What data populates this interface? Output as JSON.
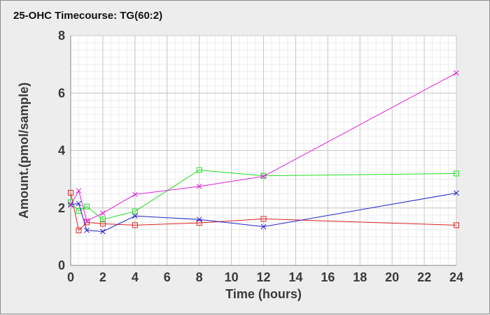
{
  "chart_data": {
    "type": "line",
    "title": "25-OHC Timecourse: TG(60:2)",
    "xlabel": "Time (hours)",
    "ylabel": "Amount.(pmol/sample)",
    "xlim": [
      0,
      24
    ],
    "ylim": [
      0,
      8
    ],
    "x_ticks": [
      "0",
      "2",
      "4",
      "6",
      "8",
      "10",
      "12",
      "14",
      "16",
      "18",
      "20",
      "22",
      "24"
    ],
    "y_ticks": [
      "0",
      "2",
      "4",
      "6",
      "8"
    ],
    "grid": true,
    "legend": "none",
    "series": [
      {
        "color": "#dd2222",
        "marker": "square",
        "x": [
          0,
          0.5,
          1,
          2,
          4,
          8,
          12,
          24
        ],
        "y": [
          2.53,
          1.22,
          1.5,
          1.45,
          1.4,
          1.48,
          1.62,
          1.4
        ]
      },
      {
        "color": "#22dd22",
        "marker": "square",
        "x": [
          0,
          0.5,
          1,
          2,
          4,
          8,
          12,
          24
        ],
        "y": [
          2.2,
          1.9,
          2.05,
          1.6,
          1.88,
          3.32,
          3.12,
          3.2
        ]
      },
      {
        "color": "#2222cc",
        "marker": "x",
        "x": [
          0,
          0.5,
          1,
          2,
          4,
          8,
          12,
          24
        ],
        "y": [
          2.12,
          2.15,
          1.22,
          1.18,
          1.72,
          1.6,
          1.35,
          2.52
        ]
      },
      {
        "color": "#dd22dd",
        "marker": "x",
        "x": [
          0,
          0.5,
          1,
          2,
          4,
          8,
          12,
          24
        ],
        "y": [
          2.1,
          2.6,
          1.55,
          1.82,
          2.47,
          2.75,
          3.1,
          6.7
        ]
      }
    ]
  }
}
